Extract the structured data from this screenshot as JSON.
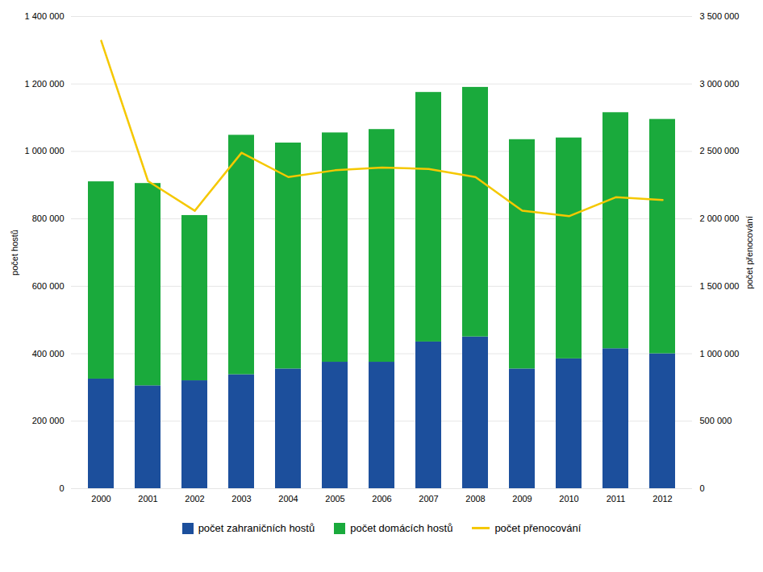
{
  "chart_data": {
    "type": "bar",
    "stacked": true,
    "categories": [
      "2000",
      "2001",
      "2002",
      "2003",
      "2004",
      "2005",
      "2006",
      "2007",
      "2008",
      "2009",
      "2010",
      "2011",
      "2012"
    ],
    "series": [
      {
        "name": "počet zahraničních hostů",
        "color": "#1c4f9c",
        "values": [
          325000,
          305000,
          320000,
          338000,
          355000,
          375000,
          375000,
          435000,
          450000,
          355000,
          385000,
          415000,
          400000
        ]
      },
      {
        "name": "počet domácích hostů",
        "color": "#1aaa3c",
        "values": [
          585000,
          600000,
          490000,
          710000,
          670000,
          680000,
          690000,
          740000,
          740000,
          680000,
          655000,
          700000,
          695000
        ]
      },
      {
        "name": "počet přenocování",
        "type": "line",
        "axis": "y2",
        "color": "#f5c800",
        "values": [
          3320000,
          2280000,
          2060000,
          2490000,
          2310000,
          2360000,
          2380000,
          2370000,
          2310000,
          2060000,
          2020000,
          2160000,
          2140000
        ]
      }
    ],
    "ylabel": "počet hostů",
    "y2label": "počet přenocování",
    "ylim": [
      0,
      1400000
    ],
    "yticks": [
      0,
      {
        "value": 200000,
        "label": "200 000"
      },
      {
        "value": 400000,
        "label": "400 000"
      },
      {
        "value": 600000,
        "label": "600 000"
      },
      {
        "value": 800000,
        "label": "800 000"
      },
      {
        "value": 1000000,
        "label": "1 000 000"
      },
      {
        "value": 1200000,
        "label": "1 200 000"
      },
      {
        "value": 1400000,
        "label": "1 400 000"
      }
    ],
    "y2lim": [
      0,
      3500000
    ],
    "y2ticks": [
      0,
      {
        "value": 500000,
        "label": "500 000"
      },
      {
        "value": 1000000,
        "label": "1 000 000"
      },
      {
        "value": 1500000,
        "label": "1 500 000"
      },
      {
        "value": 2000000,
        "label": "2 000 000"
      },
      {
        "value": 2500000,
        "label": "2 500 000"
      },
      {
        "value": 3000000,
        "label": "3 000 000"
      },
      {
        "value": 3500000,
        "label": "3 500 000"
      }
    ],
    "grid": true,
    "legend": "bottom"
  }
}
